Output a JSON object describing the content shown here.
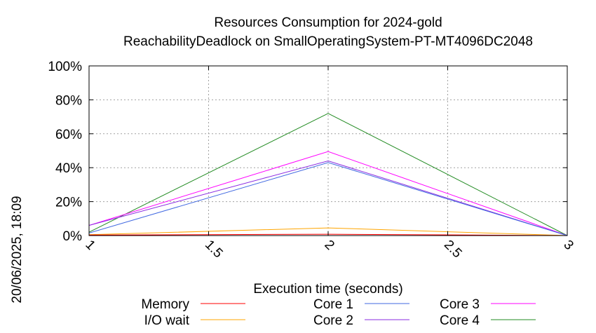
{
  "chart_data": {
    "type": "line",
    "title": "Resources Consumption for 2024-gold",
    "subtitle": "ReachabilityDeadlock on SmallOperatingSystem-PT-MT4096DC2048",
    "xlabel": "Execution time (seconds)",
    "ylabel": "",
    "timestamp": "20/06/2025, 18:09",
    "xlim": [
      1,
      3
    ],
    "ylim": [
      0,
      100
    ],
    "x_ticks": [
      "1",
      "1.5",
      "2",
      "2.5",
      "3"
    ],
    "y_ticks": [
      "0%",
      "20%",
      "40%",
      "60%",
      "80%",
      "100%"
    ],
    "grid": true,
    "legend_position": "bottom",
    "x": [
      1,
      2,
      3
    ],
    "series": [
      {
        "name": "Memory",
        "color": "#ff0000",
        "values": [
          0.3,
          0.8,
          0
        ]
      },
      {
        "name": "I/O wait",
        "color": "#ffa500",
        "values": [
          0.5,
          4.5,
          0
        ]
      },
      {
        "name": "Core 1",
        "color": "#4169e1",
        "values": [
          1.5,
          43,
          0
        ]
      },
      {
        "name": "Core 2",
        "color": "#8a2be2",
        "values": [
          6,
          44,
          0
        ]
      },
      {
        "name": "Core 3",
        "color": "#ff00ff",
        "values": [
          6,
          49.5,
          0
        ]
      },
      {
        "name": "Core 4",
        "color": "#228b22",
        "values": [
          2,
          72,
          0
        ]
      }
    ]
  }
}
